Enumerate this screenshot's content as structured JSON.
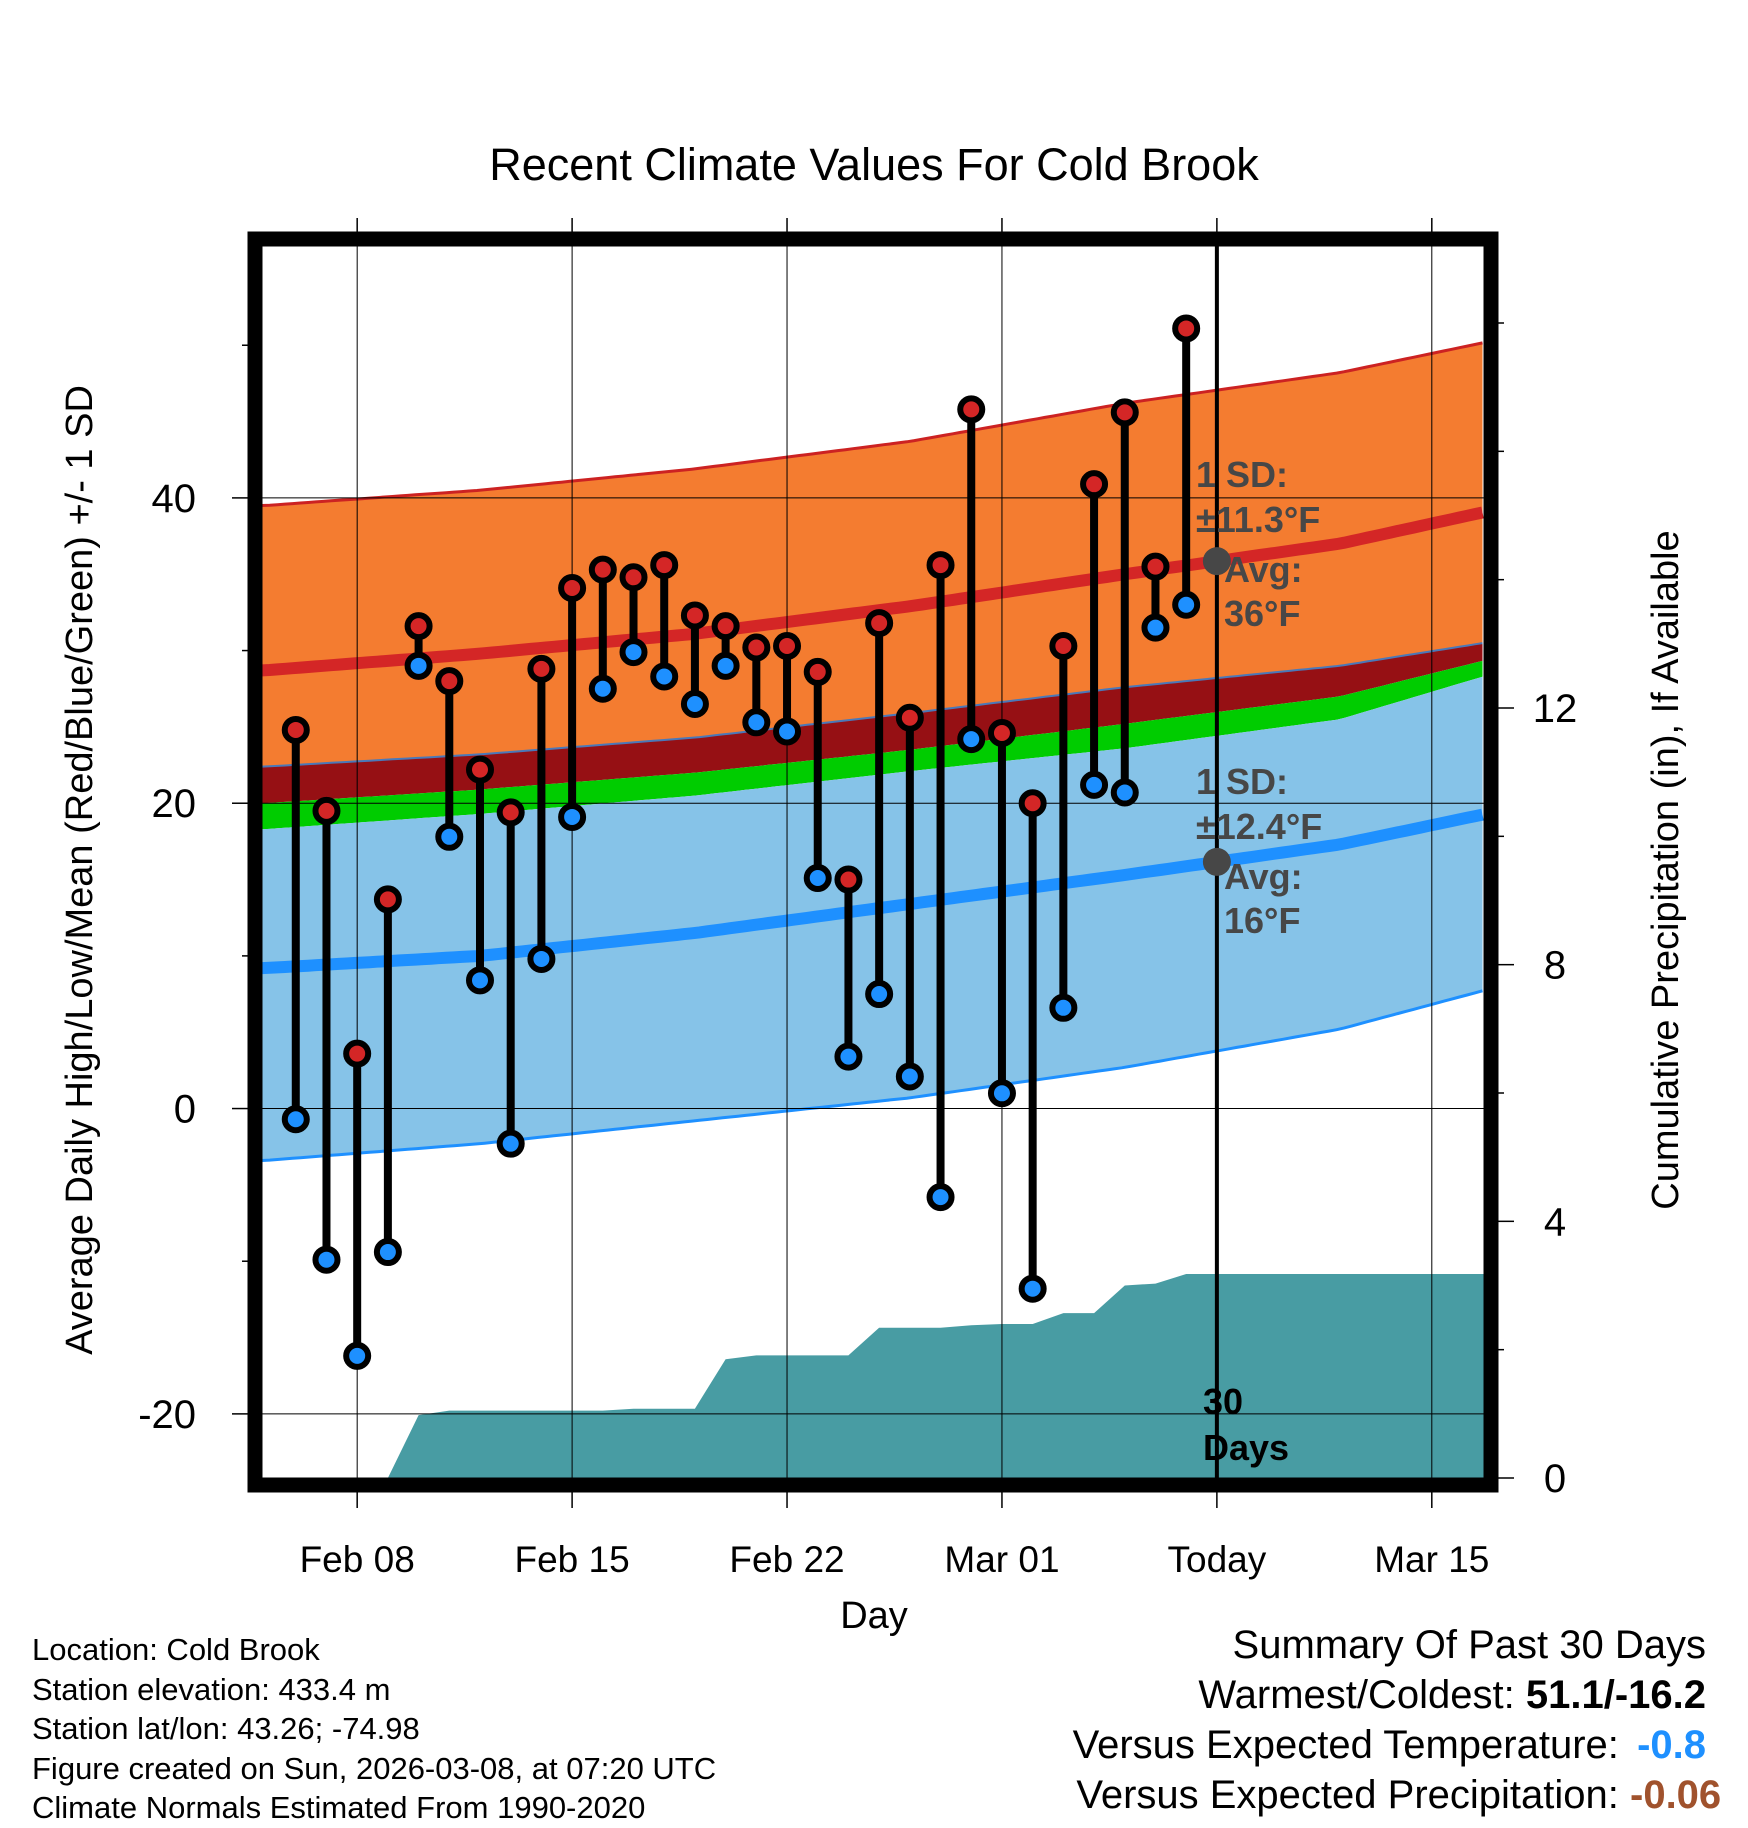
{
  "chart_data": {
    "type": "range-bar",
    "title": "Recent Climate Values For Cold Brook",
    "xlabel": "Day",
    "ylabel": "Average Daily High/Low/Mean (Red/Blue/Green) +/- 1 SD",
    "y2label": "Cumulative Precipitation (in), If Available",
    "x_tick_labels": [
      "Feb 08",
      "Feb 15",
      "Feb 22",
      "Mar 01",
      "Today",
      "Mar 15"
    ],
    "x_tick_days": [
      8,
      15,
      22,
      29,
      36,
      43
    ],
    "xlim": [
      4.9,
      44.7
    ],
    "ylim": [
      -24.2,
      56.5
    ],
    "y_ticks": [
      -20,
      0,
      20,
      40
    ],
    "y2lim": [
      0,
      19.2
    ],
    "y2_ticks": [
      0,
      4,
      8,
      12
    ],
    "today_day": 36,
    "days": [
      6,
      7,
      8,
      9,
      10,
      11,
      12,
      13,
      14,
      15,
      16,
      17,
      18,
      19,
      20,
      21,
      22,
      23,
      24,
      25,
      26,
      27,
      28,
      29,
      30,
      31,
      32,
      33,
      34,
      35
    ],
    "highs": [
      24.8,
      19.5,
      3.6,
      13.7,
      31.6,
      28.0,
      22.2,
      19.4,
      28.8,
      34.1,
      35.3,
      34.8,
      35.6,
      32.3,
      31.6,
      30.2,
      30.3,
      28.6,
      15.0,
      31.8,
      25.6,
      35.6,
      45.8,
      24.6,
      20.0,
      30.3,
      40.9,
      45.6,
      35.5,
      51.1
    ],
    "lows": [
      -0.7,
      -9.9,
      -16.2,
      -9.4,
      29.0,
      17.8,
      8.4,
      -2.3,
      9.8,
      19.1,
      27.5,
      29.9,
      28.3,
      26.5,
      29.0,
      25.3,
      24.7,
      15.1,
      3.4,
      7.5,
      2.1,
      -5.8,
      24.2,
      1.0,
      -11.8,
      6.6,
      21.2,
      20.7,
      31.5,
      33.0
    ],
    "normals": {
      "anchor_days": [
        5,
        12,
        19,
        26,
        33,
        40,
        45
      ],
      "high_mean": [
        28.7,
        29.8,
        31.1,
        32.9,
        35.0,
        37.0,
        39.2
      ],
      "high_upper": [
        39.5,
        40.5,
        41.9,
        43.7,
        46.2,
        48.2,
        50.3
      ],
      "low_mean": [
        9.2,
        10.0,
        11.5,
        13.4,
        15.3,
        17.3,
        19.4
      ],
      "low_lower": [
        -3.4,
        -2.3,
        -0.8,
        0.7,
        2.7,
        5.2,
        7.9
      ],
      "mean_upper": [
        22.4,
        23.2,
        24.3,
        25.9,
        27.6,
        29.0,
        30.6
      ],
      "green_upper": [
        20.0,
        20.9,
        22.0,
        23.5,
        25.2,
        27.0,
        29.5
      ],
      "green_lower": [
        18.3,
        19.3,
        20.5,
        22.1,
        23.6,
        25.5,
        28.5
      ]
    },
    "precip_cumulative": {
      "days": [
        6,
        7,
        8,
        9,
        10,
        11,
        12,
        13,
        14,
        15,
        16,
        17,
        18,
        19,
        20,
        21,
        22,
        23,
        24,
        25,
        26,
        27,
        28,
        29,
        30,
        31,
        32,
        33,
        34,
        35,
        36,
        37,
        38,
        39,
        40,
        41,
        42,
        43,
        44,
        45,
        45.7
      ],
      "values": [
        0,
        0,
        0,
        0,
        0.98,
        1.05,
        1.05,
        1.05,
        1.05,
        1.05,
        1.05,
        1.08,
        1.08,
        1.08,
        1.85,
        1.91,
        1.91,
        1.91,
        1.91,
        2.34,
        2.34,
        2.34,
        2.38,
        2.4,
        2.4,
        2.57,
        2.57,
        3.0,
        3.03,
        3.18,
        3.18,
        3.18,
        3.18,
        3.18,
        3.18,
        3.18,
        3.18,
        3.18,
        3.18,
        3.18,
        3.18
      ]
    },
    "annotations": {
      "high_sd": "1 SD:",
      "high_sd_value": "±11.3°F",
      "high_avg_label": "Avg:",
      "high_avg_value": "36°F",
      "low_sd": "1 SD:",
      "low_sd_value": "±12.4°F",
      "low_avg_label": "Avg:",
      "low_avg_value": "16°F",
      "window_count": "30",
      "window_unit": "Days"
    },
    "colors": {
      "high_band": "#f47c30",
      "high_mean_line": "#d42626",
      "high_band_edge": "#cc2222",
      "mean_band": "#961014",
      "green_band": "#00cc00",
      "low_band": "#86c3e8",
      "low_mean_line": "#1e90ff",
      "low_band_edge": "#1e90ff",
      "precip": "#489ca3",
      "high_dot": "#d42626",
      "low_dot": "#1e90ff",
      "avg_dot": "#474747",
      "annotation_text": "#474747"
    }
  },
  "info": {
    "location": "Location: Cold Brook",
    "elevation": "Station elevation: 433.4 m",
    "latlon": "Station lat/lon: 43.26; -74.98",
    "created": "Figure created on Sun, 2026-03-08, at 07:20 UTC",
    "normals": "Climate Normals Estimated From 1990-2020"
  },
  "summary": {
    "title": "Summary Of Past 30 Days",
    "warm_cold_label": "Warmest/Coldest:",
    "warm_cold_value": "51.1/-16.2",
    "temp_label": "Versus Expected Temperature:",
    "temp_value": "-0.8",
    "temp_color": "#1e90ff",
    "precip_label": "Versus Expected Precipitation:",
    "precip_value": "-0.06",
    "precip_color": "#a0522d"
  }
}
